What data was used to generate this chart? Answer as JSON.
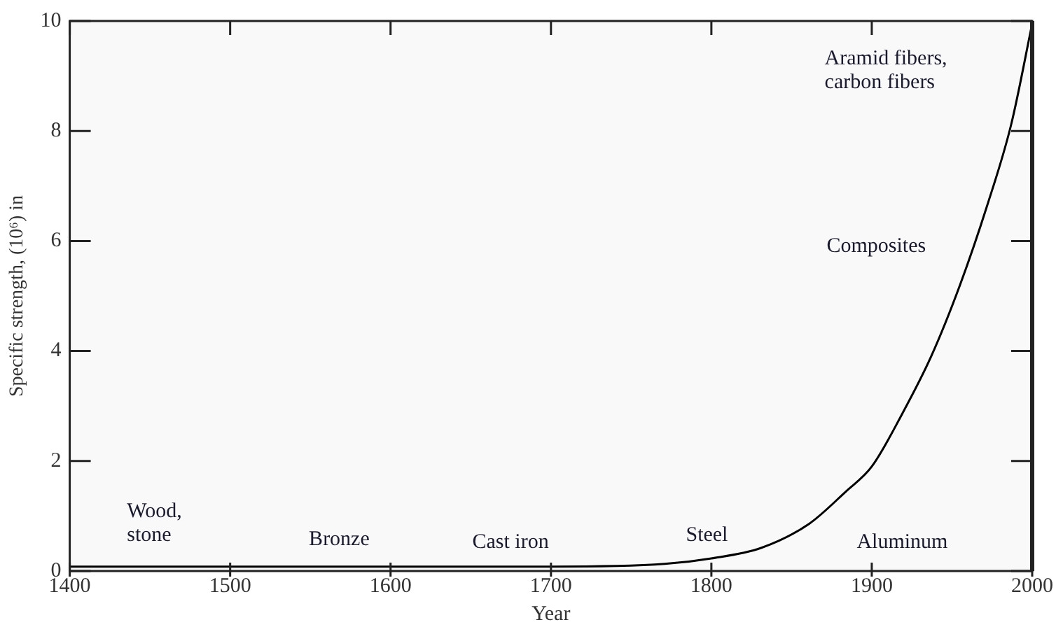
{
  "chart_data": {
    "type": "line",
    "xlabel": "Year",
    "ylabel": "Specific strength, (10⁶) in",
    "x": [
      1400,
      1500,
      1600,
      1700,
      1771,
      1800,
      1831,
      1861,
      1884,
      1900,
      1919,
      1937,
      1955,
      1972,
      1987,
      2000
    ],
    "series": [
      {
        "color": "#000000",
        "values": [
          0.08,
          0.08,
          0.08,
          0.08,
          0.13,
          0.23,
          0.42,
          0.86,
          1.45,
          1.9,
          2.86,
          3.9,
          5.2,
          6.65,
          8.13,
          9.95
        ]
      }
    ],
    "xlim": [
      1400,
      2000
    ],
    "xticks": [
      1400,
      1500,
      1600,
      1700,
      1800,
      1900,
      2000
    ],
    "ylim": [
      0,
      10
    ],
    "yticks": [
      0,
      2,
      4,
      6,
      8,
      10
    ],
    "grid": false,
    "legend": false,
    "marker": "none",
    "line_style": "solid",
    "annotations": [
      "Wood,\nstone",
      "Bronze",
      "Cast iron",
      "Steel",
      "Aluminum",
      "Composites",
      "Aramid fibers,\ncarbon fibers"
    ]
  }
}
